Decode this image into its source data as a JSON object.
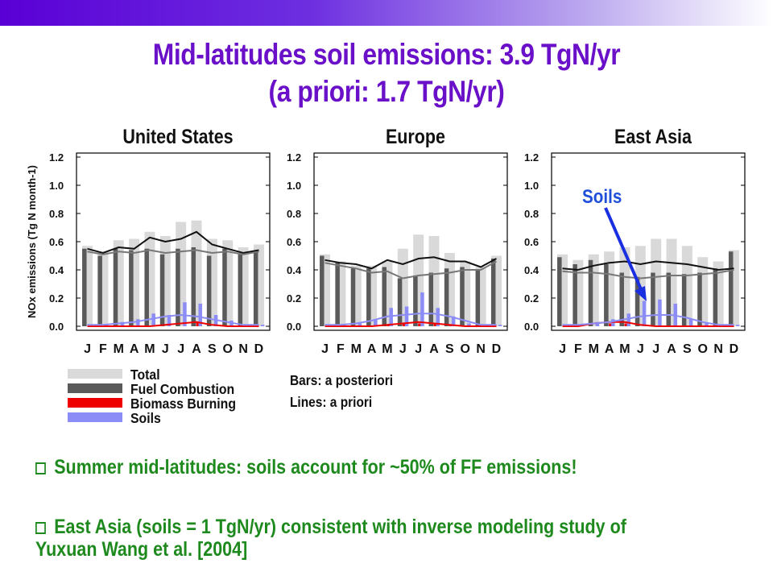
{
  "slide": {
    "title_line1": "Mid-latitudes soil emissions: 3.9 TgN/yr",
    "title_line2": "(a priori: 1.7 TgN/yr)",
    "notes": [
      "Bars: a posteriori",
      "Lines: a priori"
    ],
    "annotation": "Soils",
    "bullets": [
      "Summer mid-latitudes: soils account for ~50% of FF emissions!",
      "East Asia (soils = 1 TgN/yr) consistent with inverse modeling study of Yuxuan Wang et al. [2004]"
    ],
    "colors": {
      "title": "#6a10c8",
      "bullets": "#1e8a1e",
      "annotation": "#1f4fd8",
      "arrow": "#1a2fe0",
      "total": "#d9d9d9",
      "fuel": "#5a5a5a",
      "biomass": "#ee0000",
      "soils": "#8c8cf6"
    }
  },
  "chart_data": [
    {
      "type": "bar",
      "title": "United States",
      "ylabel": "NOx emissions (Tg N month-1)",
      "ylim": [
        0,
        1.2
      ],
      "yticks": [
        "0.0",
        "0.2",
        "0.4",
        "0.6",
        "0.8",
        "1.0",
        "1.2"
      ],
      "categories": [
        "J",
        "F",
        "M",
        "A",
        "M",
        "J",
        "J",
        "A",
        "S",
        "O",
        "N",
        "D"
      ],
      "bars_a_posteriori": [
        {
          "name": "Total",
          "values": [
            0.57,
            0.53,
            0.61,
            0.62,
            0.67,
            0.64,
            0.74,
            0.75,
            0.62,
            0.61,
            0.56,
            0.58
          ]
        },
        {
          "name": "Fuel Combustion",
          "values": [
            0.55,
            0.5,
            0.55,
            0.54,
            0.55,
            0.51,
            0.55,
            0.56,
            0.5,
            0.55,
            0.51,
            0.54
          ]
        },
        {
          "name": "Biomass Burning",
          "values": [
            0.0,
            0.0,
            0.0,
            0.0,
            0.0,
            0.0,
            0.0,
            0.03,
            0.0,
            0.0,
            0.0,
            0.0
          ]
        },
        {
          "name": "Soils",
          "values": [
            0.01,
            0.01,
            0.03,
            0.05,
            0.09,
            0.08,
            0.17,
            0.16,
            0.08,
            0.04,
            0.01,
            0.01
          ]
        }
      ],
      "lines_a_priori": [
        {
          "name": "Total",
          "values": [
            0.55,
            0.52,
            0.56,
            0.55,
            0.63,
            0.6,
            0.62,
            0.67,
            0.58,
            0.55,
            0.52,
            0.54
          ]
        },
        {
          "name": "Fuel Combustion",
          "values": [
            0.53,
            0.51,
            0.53,
            0.52,
            0.54,
            0.52,
            0.53,
            0.54,
            0.52,
            0.53,
            0.51,
            0.53
          ]
        },
        {
          "name": "Biomass Burning",
          "values": [
            0.0,
            0.0,
            0.0,
            0.0,
            0.0,
            0.01,
            0.02,
            0.03,
            0.01,
            0.0,
            0.0,
            0.0
          ]
        },
        {
          "name": "Soils",
          "values": [
            0.01,
            0.01,
            0.02,
            0.03,
            0.05,
            0.07,
            0.08,
            0.07,
            0.05,
            0.03,
            0.01,
            0.01
          ]
        }
      ]
    },
    {
      "type": "bar",
      "title": "Europe",
      "ylim": [
        0,
        1.2
      ],
      "yticks": [
        "0.0",
        "0.2",
        "0.4",
        "0.6",
        "0.8",
        "1.0",
        "1.2"
      ],
      "categories": [
        "J",
        "F",
        "M",
        "A",
        "M",
        "J",
        "J",
        "A",
        "S",
        "O",
        "N",
        "D"
      ],
      "bars_a_posteriori": [
        {
          "name": "Total",
          "values": [
            0.51,
            0.46,
            0.43,
            0.43,
            0.46,
            0.55,
            0.65,
            0.64,
            0.52,
            0.46,
            0.42,
            0.5
          ]
        },
        {
          "name": "Fuel Combustion",
          "values": [
            0.5,
            0.45,
            0.41,
            0.41,
            0.42,
            0.34,
            0.36,
            0.38,
            0.41,
            0.42,
            0.4,
            0.48
          ]
        },
        {
          "name": "Biomass Burning",
          "values": [
            0.0,
            0.0,
            0.0,
            0.0,
            0.01,
            0.02,
            0.02,
            0.02,
            0.01,
            0.0,
            0.0,
            0.0
          ]
        },
        {
          "name": "Soils",
          "values": [
            0.01,
            0.01,
            0.02,
            0.05,
            0.13,
            0.14,
            0.24,
            0.13,
            0.07,
            0.02,
            0.01,
            0.01
          ]
        }
      ],
      "lines_a_priori": [
        {
          "name": "Total",
          "values": [
            0.47,
            0.45,
            0.44,
            0.41,
            0.47,
            0.44,
            0.48,
            0.49,
            0.46,
            0.46,
            0.42,
            0.48
          ]
        },
        {
          "name": "Fuel Combustion",
          "values": [
            0.45,
            0.43,
            0.41,
            0.38,
            0.39,
            0.34,
            0.36,
            0.37,
            0.38,
            0.4,
            0.4,
            0.46
          ]
        },
        {
          "name": "Biomass Burning",
          "values": [
            0.0,
            0.0,
            0.0,
            0.0,
            0.01,
            0.02,
            0.03,
            0.02,
            0.01,
            0.0,
            0.0,
            0.0
          ]
        },
        {
          "name": "Soils",
          "values": [
            0.01,
            0.01,
            0.02,
            0.04,
            0.07,
            0.08,
            0.09,
            0.09,
            0.07,
            0.04,
            0.01,
            0.01
          ]
        }
      ]
    },
    {
      "type": "bar",
      "title": "East Asia",
      "ylim": [
        0,
        1.2
      ],
      "yticks": [
        "0.0",
        "0.2",
        "0.4",
        "0.6",
        "0.8",
        "1.0",
        "1.2"
      ],
      "categories": [
        "J",
        "F",
        "M",
        "A",
        "M",
        "J",
        "J",
        "A",
        "S",
        "O",
        "N",
        "D"
      ],
      "bars_a_posteriori": [
        {
          "name": "Total",
          "values": [
            0.51,
            0.47,
            0.51,
            0.53,
            0.56,
            0.57,
            0.62,
            0.62,
            0.57,
            0.49,
            0.46,
            0.54
          ]
        },
        {
          "name": "Fuel Combustion",
          "values": [
            0.49,
            0.44,
            0.47,
            0.44,
            0.38,
            0.35,
            0.38,
            0.38,
            0.37,
            0.38,
            0.41,
            0.53
          ]
        },
        {
          "name": "Biomass Burning",
          "values": [
            0.0,
            0.0,
            0.0,
            0.02,
            0.02,
            0.0,
            0.0,
            0.0,
            0.0,
            0.0,
            0.0,
            0.0
          ]
        },
        {
          "name": "Soils",
          "values": [
            0.01,
            0.01,
            0.03,
            0.05,
            0.09,
            0.18,
            0.19,
            0.16,
            0.05,
            0.02,
            0.01,
            0.01
          ]
        }
      ],
      "lines_a_priori": [
        {
          "name": "Total",
          "values": [
            0.41,
            0.4,
            0.43,
            0.45,
            0.46,
            0.44,
            0.46,
            0.45,
            0.44,
            0.42,
            0.4,
            0.41
          ]
        },
        {
          "name": "Fuel Combustion",
          "values": [
            0.39,
            0.38,
            0.38,
            0.37,
            0.35,
            0.34,
            0.35,
            0.36,
            0.36,
            0.37,
            0.38,
            0.4
          ]
        },
        {
          "name": "Biomass Burning",
          "values": [
            0.0,
            0.0,
            0.02,
            0.03,
            0.03,
            0.01,
            0.0,
            0.0,
            0.0,
            0.0,
            0.0,
            0.0
          ]
        },
        {
          "name": "Soils",
          "values": [
            0.01,
            0.01,
            0.02,
            0.03,
            0.05,
            0.07,
            0.08,
            0.08,
            0.06,
            0.03,
            0.01,
            0.01
          ]
        }
      ]
    }
  ],
  "legend": [
    {
      "label": "Total",
      "color": "#d9d9d9"
    },
    {
      "label": "Fuel Combustion",
      "color": "#5a5a5a"
    },
    {
      "label": "Biomass Burning",
      "color": "#ee0000"
    },
    {
      "label": "Soils",
      "color": "#8c8cf6"
    }
  ]
}
